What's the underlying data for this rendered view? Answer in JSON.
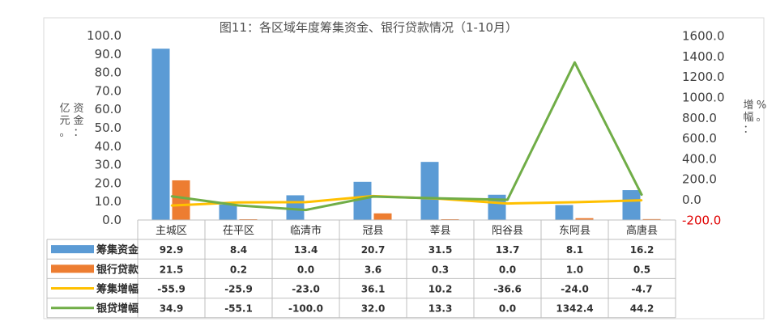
{
  "chart_data": {
    "type": "bar",
    "title": "图11：各区域年度筹集资金、银行贷款情况（1-10月）",
    "ylabel": "资金：亿元。",
    "y2label": "增幅：%。",
    "ylim": [
      0,
      100
    ],
    "y2lim": [
      -200,
      1600
    ],
    "y_ticks": [
      "100.0",
      "90.0",
      "80.0",
      "70.0",
      "60.0",
      "50.0",
      "40.0",
      "30.0",
      "20.0",
      "10.0",
      "0.0"
    ],
    "y2_ticks": [
      "1600.0",
      "1400.0",
      "1200.0",
      "1000.0",
      "800.0",
      "600.0",
      "400.0",
      "200.0",
      "0.0",
      "-200.0"
    ],
    "categories": [
      "主城区",
      "茌平区",
      "临清市",
      "冠县",
      "莘县",
      "阳谷县",
      "东阿县",
      "高唐县"
    ],
    "series": [
      {
        "name": "筹集资金",
        "type": "bar",
        "axis": "left",
        "color": "#5b9bd5",
        "values": [
          92.9,
          8.4,
          13.4,
          20.7,
          31.5,
          13.7,
          8.1,
          16.2
        ],
        "labels": [
          "92.9",
          "8.4",
          "13.4",
          "20.7",
          "31.5",
          "13.7",
          "8.1",
          "16.2"
        ]
      },
      {
        "name": "银行贷款",
        "type": "bar",
        "axis": "left",
        "color": "#ed7d31",
        "values": [
          21.5,
          0.2,
          0.0,
          3.6,
          0.3,
          0.0,
          1.0,
          0.5
        ],
        "labels": [
          "21.5",
          "0.2",
          "0.0",
          "3.6",
          "0.3",
          "0.0",
          "1.0",
          "0.5"
        ]
      },
      {
        "name": "筹集增幅",
        "type": "line",
        "axis": "right",
        "color": "#ffc000",
        "values": [
          -55.9,
          -25.9,
          -23.0,
          36.1,
          10.2,
          -36.6,
          -24.0,
          -4.7
        ],
        "labels": [
          "-55.9",
          "-25.9",
          "-23.0",
          "36.1",
          "10.2",
          "-36.6",
          "-24.0",
          "-4.7"
        ]
      },
      {
        "name": "银贷增幅",
        "type": "line",
        "axis": "right",
        "color": "#70ad47",
        "values": [
          34.9,
          -55.1,
          -100.0,
          32.0,
          13.3,
          0.0,
          1342.4,
          44.2
        ],
        "labels": [
          "34.9",
          "-55.1",
          "-100.0",
          "32.0",
          "13.3",
          "0.0",
          "1342.4",
          "44.2"
        ]
      }
    ],
    "grid": false,
    "legend": "data-table"
  }
}
